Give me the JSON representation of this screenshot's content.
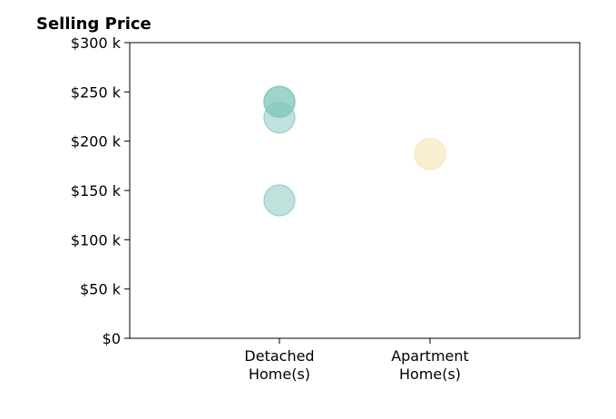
{
  "chart_data": {
    "type": "scatter",
    "title": "Selling Price",
    "xlabel": "",
    "ylabel": "",
    "categories": [
      "Detached Home(s)",
      "Apartment Home(s)"
    ],
    "category_lines": [
      [
        "Detached",
        "Home(s)"
      ],
      [
        "Apartment",
        "Home(s)"
      ]
    ],
    "ylim": [
      0,
      300
    ],
    "yticks": [
      0,
      50,
      100,
      150,
      200,
      250,
      300
    ],
    "ytick_labels": [
      "$0",
      "$50 k",
      "$100 k",
      "$150 k",
      "$200 k",
      "$250 k",
      "$300 k"
    ],
    "grid": false,
    "points": [
      {
        "category": "Detached Home(s)",
        "y": 240,
        "color": "#7fc5bb"
      },
      {
        "category": "Detached Home(s)",
        "y": 240,
        "color": "#7fc5bb"
      },
      {
        "category": "Detached Home(s)",
        "y": 224,
        "color": "#7fc5bb"
      },
      {
        "category": "Detached Home(s)",
        "y": 140,
        "color": "#7fc5bb"
      },
      {
        "category": "Apartment Home(s)",
        "y": 187,
        "color": "#f3dfa8"
      }
    ]
  }
}
